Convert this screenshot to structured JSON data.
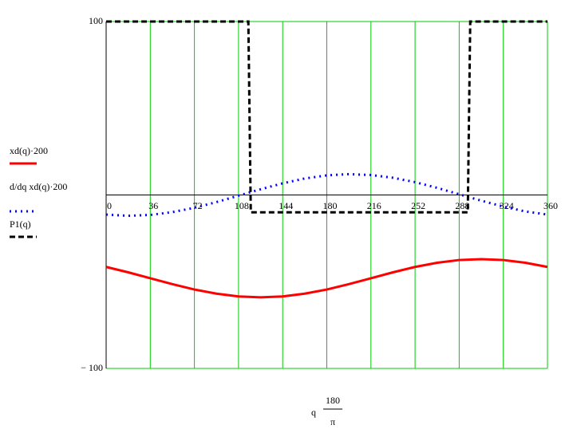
{
  "chart_data": {
    "type": "line",
    "x_label": {
      "prefix": "q",
      "numerator": "180",
      "denominator": "π"
    },
    "xlim": [
      0,
      360
    ],
    "xticks": [
      0,
      36,
      72,
      108,
      144,
      180,
      216,
      252,
      288,
      324,
      360
    ],
    "ylim": [
      -100,
      100
    ],
    "yticks": [
      {
        "value": -100,
        "label": "− 100"
      },
      100
    ],
    "grid": true,
    "grid_color": "#00cc00",
    "legend": "left",
    "series": [
      {
        "name": "xd(q)·200",
        "color": "#ff0000",
        "style": "solid",
        "x": [
          0,
          18,
          36,
          54,
          72,
          90,
          108,
          126,
          144,
          162,
          180,
          198,
          216,
          234,
          252,
          270,
          288,
          306,
          324,
          342,
          360
        ],
        "values": [
          -41.5,
          -44.6,
          -48,
          -51.4,
          -54.5,
          -56.9,
          -58.5,
          -59,
          -58.5,
          -56.9,
          -54.5,
          -51.4,
          -48,
          -44.6,
          -41.5,
          -39.1,
          -37.5,
          -37,
          -37.5,
          -39.1,
          -41.5
        ]
      },
      {
        "name": "d/dq xd(q)·200",
        "color": "#0000ff",
        "style": "dotted",
        "x": [
          0,
          18,
          36,
          54,
          72,
          90,
          108,
          126,
          144,
          162,
          180,
          198,
          216,
          234,
          252,
          270,
          288,
          306,
          324,
          342,
          360
        ],
        "values": [
          -11.3,
          -12,
          -11.5,
          -9.9,
          -7.4,
          -4.1,
          -0.4,
          3.3,
          6.7,
          9.5,
          11.3,
          12,
          11.5,
          9.9,
          7.4,
          4.1,
          0.4,
          -3.3,
          -6.7,
          -9.5,
          -11.3
        ]
      },
      {
        "name": "P1(q)",
        "color": "#000000",
        "style": "dashed",
        "x": [
          0,
          116,
          118,
          295,
          297,
          360
        ],
        "values": [
          100,
          100,
          -10,
          -10,
          100,
          100
        ]
      }
    ]
  }
}
